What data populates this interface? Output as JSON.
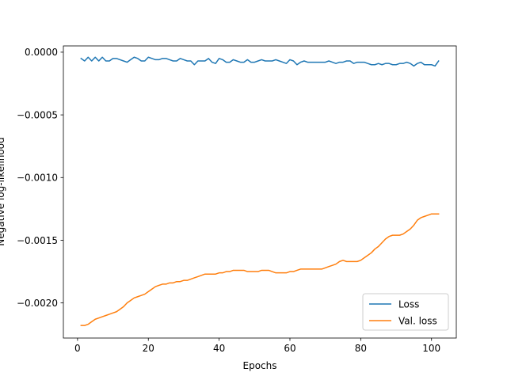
{
  "chart_data": {
    "type": "line",
    "title": "",
    "xlabel": "Epochs",
    "ylabel": "Negative log-likelihood",
    "xlim": [
      -4,
      107
    ],
    "ylim": [
      -0.00228,
      5e-05
    ],
    "x_ticks": [
      0,
      20,
      40,
      60,
      80,
      100
    ],
    "x_tick_labels": [
      "0",
      "20",
      "40",
      "60",
      "80",
      "100"
    ],
    "y_ticks": [
      0.0,
      -0.0005,
      -0.001,
      -0.0015,
      -0.002
    ],
    "y_tick_labels": [
      "0.0000",
      "−0.0005",
      "−0.0010",
      "−0.0015",
      "−0.0020"
    ],
    "grid": false,
    "legend": "lower-right",
    "series": [
      {
        "name": "Loss",
        "color": "#1f77b4",
        "x": [
          1,
          2,
          3,
          4,
          5,
          6,
          7,
          8,
          9,
          10,
          11,
          12,
          13,
          14,
          15,
          16,
          17,
          18,
          19,
          20,
          21,
          22,
          23,
          24,
          25,
          26,
          27,
          28,
          29,
          30,
          31,
          32,
          33,
          34,
          35,
          36,
          37,
          38,
          39,
          40,
          41,
          42,
          43,
          44,
          45,
          46,
          47,
          48,
          49,
          50,
          51,
          52,
          53,
          54,
          55,
          56,
          57,
          58,
          59,
          60,
          61,
          62,
          63,
          64,
          65,
          66,
          67,
          68,
          69,
          70,
          71,
          72,
          73,
          74,
          75,
          76,
          77,
          78,
          79,
          80,
          81,
          82,
          83,
          84,
          85,
          86,
          87,
          88,
          89,
          90,
          91,
          92,
          93,
          94,
          95,
          96,
          97,
          98,
          99,
          100,
          101,
          102
        ],
        "values": [
          -5e-05,
          -7e-05,
          -4e-05,
          -7e-05,
          -4e-05,
          -7e-05,
          -4e-05,
          -7e-05,
          -7e-05,
          -5e-05,
          -5e-05,
          -6e-05,
          -7e-05,
          -8e-05,
          -6e-05,
          -4e-05,
          -5e-05,
          -7e-05,
          -7e-05,
          -4e-05,
          -5e-05,
          -6e-05,
          -6e-05,
          -5e-05,
          -5e-05,
          -6e-05,
          -7e-05,
          -7e-05,
          -5e-05,
          -6e-05,
          -7e-05,
          -7e-05,
          -0.0001,
          -7e-05,
          -7e-05,
          -7e-05,
          -5e-05,
          -8e-05,
          -9e-05,
          -5e-05,
          -6e-05,
          -8e-05,
          -8e-05,
          -6e-05,
          -7e-05,
          -8e-05,
          -8e-05,
          -6e-05,
          -8e-05,
          -8e-05,
          -7e-05,
          -6e-05,
          -7e-05,
          -7e-05,
          -7e-05,
          -6e-05,
          -7e-05,
          -8e-05,
          -9e-05,
          -6e-05,
          -7e-05,
          -0.0001,
          -8e-05,
          -7e-05,
          -8e-05,
          -8e-05,
          -8e-05,
          -8e-05,
          -8e-05,
          -8e-05,
          -7e-05,
          -8e-05,
          -9e-05,
          -8e-05,
          -8e-05,
          -7e-05,
          -7e-05,
          -9e-05,
          -8e-05,
          -8e-05,
          -8e-05,
          -9e-05,
          -0.0001,
          -0.0001,
          -9e-05,
          -0.0001,
          -9e-05,
          -9e-05,
          -0.0001,
          -0.0001,
          -9e-05,
          -9e-05,
          -8e-05,
          -9e-05,
          -0.00011,
          -9e-05,
          -8e-05,
          -0.0001,
          -0.0001,
          -0.0001,
          -0.00011,
          -7e-05
        ]
      },
      {
        "name": "Val. loss",
        "color": "#ff7f0e",
        "x": [
          1,
          2,
          3,
          4,
          5,
          6,
          7,
          8,
          9,
          10,
          11,
          12,
          13,
          14,
          15,
          16,
          17,
          18,
          19,
          20,
          21,
          22,
          23,
          24,
          25,
          26,
          27,
          28,
          29,
          30,
          31,
          32,
          33,
          34,
          35,
          36,
          37,
          38,
          39,
          40,
          41,
          42,
          43,
          44,
          45,
          46,
          47,
          48,
          49,
          50,
          51,
          52,
          53,
          54,
          55,
          56,
          57,
          58,
          59,
          60,
          61,
          62,
          63,
          64,
          65,
          66,
          67,
          68,
          69,
          70,
          71,
          72,
          73,
          74,
          75,
          76,
          77,
          78,
          79,
          80,
          81,
          82,
          83,
          84,
          85,
          86,
          87,
          88,
          89,
          90,
          91,
          92,
          93,
          94,
          95,
          96,
          97,
          98,
          99,
          100,
          101,
          102
        ],
        "values": [
          -0.00218,
          -0.00218,
          -0.00217,
          -0.00215,
          -0.00213,
          -0.00212,
          -0.00211,
          -0.0021,
          -0.00209,
          -0.00208,
          -0.00207,
          -0.00205,
          -0.00203,
          -0.002,
          -0.00198,
          -0.00196,
          -0.00195,
          -0.00194,
          -0.00193,
          -0.00191,
          -0.00189,
          -0.00187,
          -0.00186,
          -0.00185,
          -0.00185,
          -0.00184,
          -0.00184,
          -0.00183,
          -0.00183,
          -0.00182,
          -0.00182,
          -0.00181,
          -0.0018,
          -0.00179,
          -0.00178,
          -0.00177,
          -0.00177,
          -0.00177,
          -0.00177,
          -0.00176,
          -0.00176,
          -0.00175,
          -0.00175,
          -0.00174,
          -0.00174,
          -0.00174,
          -0.00174,
          -0.00175,
          -0.00175,
          -0.00175,
          -0.00175,
          -0.00174,
          -0.00174,
          -0.00174,
          -0.00175,
          -0.00176,
          -0.00176,
          -0.00176,
          -0.00176,
          -0.00175,
          -0.00175,
          -0.00174,
          -0.00173,
          -0.00173,
          -0.00173,
          -0.00173,
          -0.00173,
          -0.00173,
          -0.00173,
          -0.00172,
          -0.00171,
          -0.0017,
          -0.00169,
          -0.00167,
          -0.00166,
          -0.00167,
          -0.00167,
          -0.00167,
          -0.00167,
          -0.00166,
          -0.00164,
          -0.00162,
          -0.0016,
          -0.00157,
          -0.00155,
          -0.00152,
          -0.00149,
          -0.00147,
          -0.00146,
          -0.00146,
          -0.00146,
          -0.00145,
          -0.00143,
          -0.00141,
          -0.00138,
          -0.00134,
          -0.00132,
          -0.00131,
          -0.0013,
          -0.00129,
          -0.00129,
          -0.00129
        ]
      }
    ]
  }
}
